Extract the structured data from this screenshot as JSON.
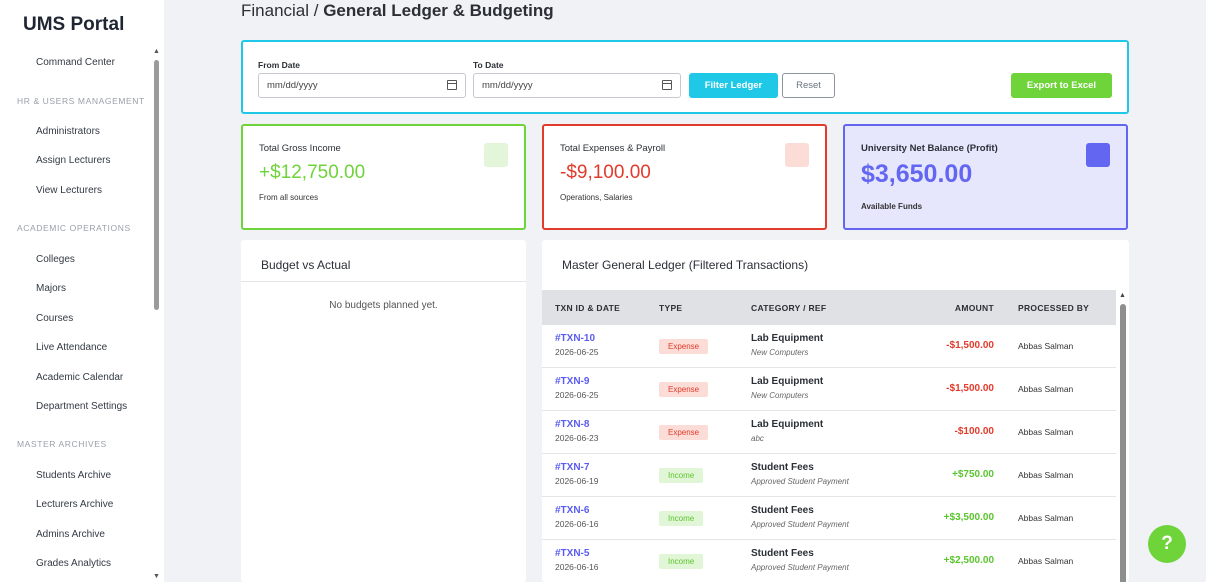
{
  "sidebar": {
    "brand": "UMS Portal",
    "items": {
      "command_center": "Command Center",
      "sec_hr": "HR & USERS MANAGEMENT",
      "administrators": "Administrators",
      "assign_lecturers": "Assign Lecturers",
      "view_lecturers": "View Lecturers",
      "sec_academic": "ACADEMIC OPERATIONS",
      "colleges": "Colleges",
      "majors": "Majors",
      "courses": "Courses",
      "live_attendance": "Live Attendance",
      "academic_calendar": "Academic Calendar",
      "department_settings": "Department Settings",
      "sec_archives": "MASTER ARCHIVES",
      "students_archive": "Students Archive",
      "lecturers_archive": "Lecturers Archive",
      "admins_archive": "Admins Archive",
      "grades_analytics": "Grades Analytics"
    }
  },
  "header": {
    "breadcrumb_parent": "Financial / ",
    "title": "General Ledger & Budgeting"
  },
  "filters": {
    "from_label": "From Date",
    "from_value": "mm/dd/yyyy",
    "to_label": "To Date",
    "to_value": "mm/dd/yyyy",
    "filter_button": "Filter Ledger",
    "reset_button": "Reset",
    "export_button": "Export to Excel"
  },
  "kpis": {
    "income": {
      "title": "Total Gross Income",
      "value": "+$12,750.00",
      "sub": "From all sources",
      "color": "#6fd33a"
    },
    "expenses": {
      "title": "Total Expenses & Payroll",
      "value": "-$9,100.00",
      "sub": "Operations, Salaries",
      "color": "#e23b2c"
    },
    "net": {
      "title": "University Net Balance (Profit)",
      "value": "$3,650.00",
      "sub": "Available Funds",
      "color": "#6366f1"
    }
  },
  "budget": {
    "title": "Budget vs Actual",
    "empty": "No budgets planned yet."
  },
  "ledger": {
    "title": "Master General Ledger (Filtered Transactions)",
    "columns": {
      "txn": "TXN ID & DATE",
      "type": "TYPE",
      "category": "CATEGORY / REF",
      "amount": "AMOUNT",
      "processed_by": "PROCESSED BY"
    },
    "rows": [
      {
        "id": "#TXN-10",
        "date": "2026-06-25",
        "type": "Expense",
        "category": "Lab Equipment",
        "ref": "New Computers",
        "amount": "-$1,500.00",
        "by": "Abbas Salman"
      },
      {
        "id": "#TXN-9",
        "date": "2026-06-25",
        "type": "Expense",
        "category": "Lab Equipment",
        "ref": "New Computers",
        "amount": "-$1,500.00",
        "by": "Abbas Salman"
      },
      {
        "id": "#TXN-8",
        "date": "2026-06-23",
        "type": "Expense",
        "category": "Lab Equipment",
        "ref": "abc",
        "amount": "-$100.00",
        "by": "Abbas Salman"
      },
      {
        "id": "#TXN-7",
        "date": "2026-06-19",
        "type": "Income",
        "category": "Student Fees",
        "ref": "Approved Student Payment",
        "amount": "+$750.00",
        "by": "Abbas Salman"
      },
      {
        "id": "#TXN-6",
        "date": "2026-06-16",
        "type": "Income",
        "category": "Student Fees",
        "ref": "Approved Student Payment",
        "amount": "+$3,500.00",
        "by": "Abbas Salman"
      },
      {
        "id": "#TXN-5",
        "date": "2026-06-16",
        "type": "Income",
        "category": "Student Fees",
        "ref": "Approved Student Payment",
        "amount": "+$2,500.00",
        "by": "Abbas Salman"
      }
    ]
  },
  "help": {
    "label": "?"
  }
}
